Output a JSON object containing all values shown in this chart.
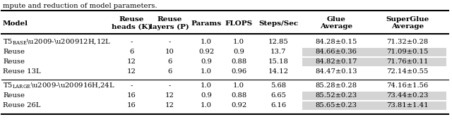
{
  "title": "mpute and reduction of model parameters.",
  "col_labels_line1": [
    "Model",
    "Reuse",
    "Reuse",
    "Params",
    "FLOPS",
    "Steps/Sec",
    "Glue",
    "SuperGlue"
  ],
  "col_labels_line2": [
    "",
    "heads (K)",
    "layers (P)",
    "",
    "",
    "",
    "Average",
    "Average"
  ],
  "rows": [
    [
      "T5_BASE_row",
      "-",
      "-",
      "1.0",
      "1.0",
      "12.85",
      "84.28±0.15",
      "71.32±0.28",
      false
    ],
    [
      "Reuse",
      "6",
      "10",
      "0.92",
      "0.9",
      "13.7",
      "84.66±0.36",
      "71.09±0.15",
      true
    ],
    [
      "Reuse",
      "12",
      "6",
      "0.9",
      "0.88",
      "15.18",
      "84.82±0.17",
      "71.76±0.11",
      true
    ],
    [
      "Reuse 13L",
      "12",
      "6",
      "1.0",
      "0.96",
      "14.12",
      "84.47±0.13",
      "72.14±0.55",
      false
    ],
    [
      "T5_LARGE_row",
      "-",
      "-",
      "1.0",
      "1.0",
      "5.68",
      "85.28±0.28",
      "74.16±1.56",
      false
    ],
    [
      "Reuse",
      "16",
      "12",
      "0.9",
      "0.88",
      "6.65",
      "85.52±0.23",
      "73.44±0.23",
      true
    ],
    [
      "Reuse 26L",
      "16",
      "12",
      "1.0",
      "0.92",
      "6.16",
      "85.65±0.23",
      "73.81±1.41",
      true
    ]
  ],
  "highlight_color": "#d4d4d4",
  "thick_lw": 1.5,
  "thin_lw": 0.8,
  "fontsize": 7.2,
  "header_fontsize": 7.5
}
